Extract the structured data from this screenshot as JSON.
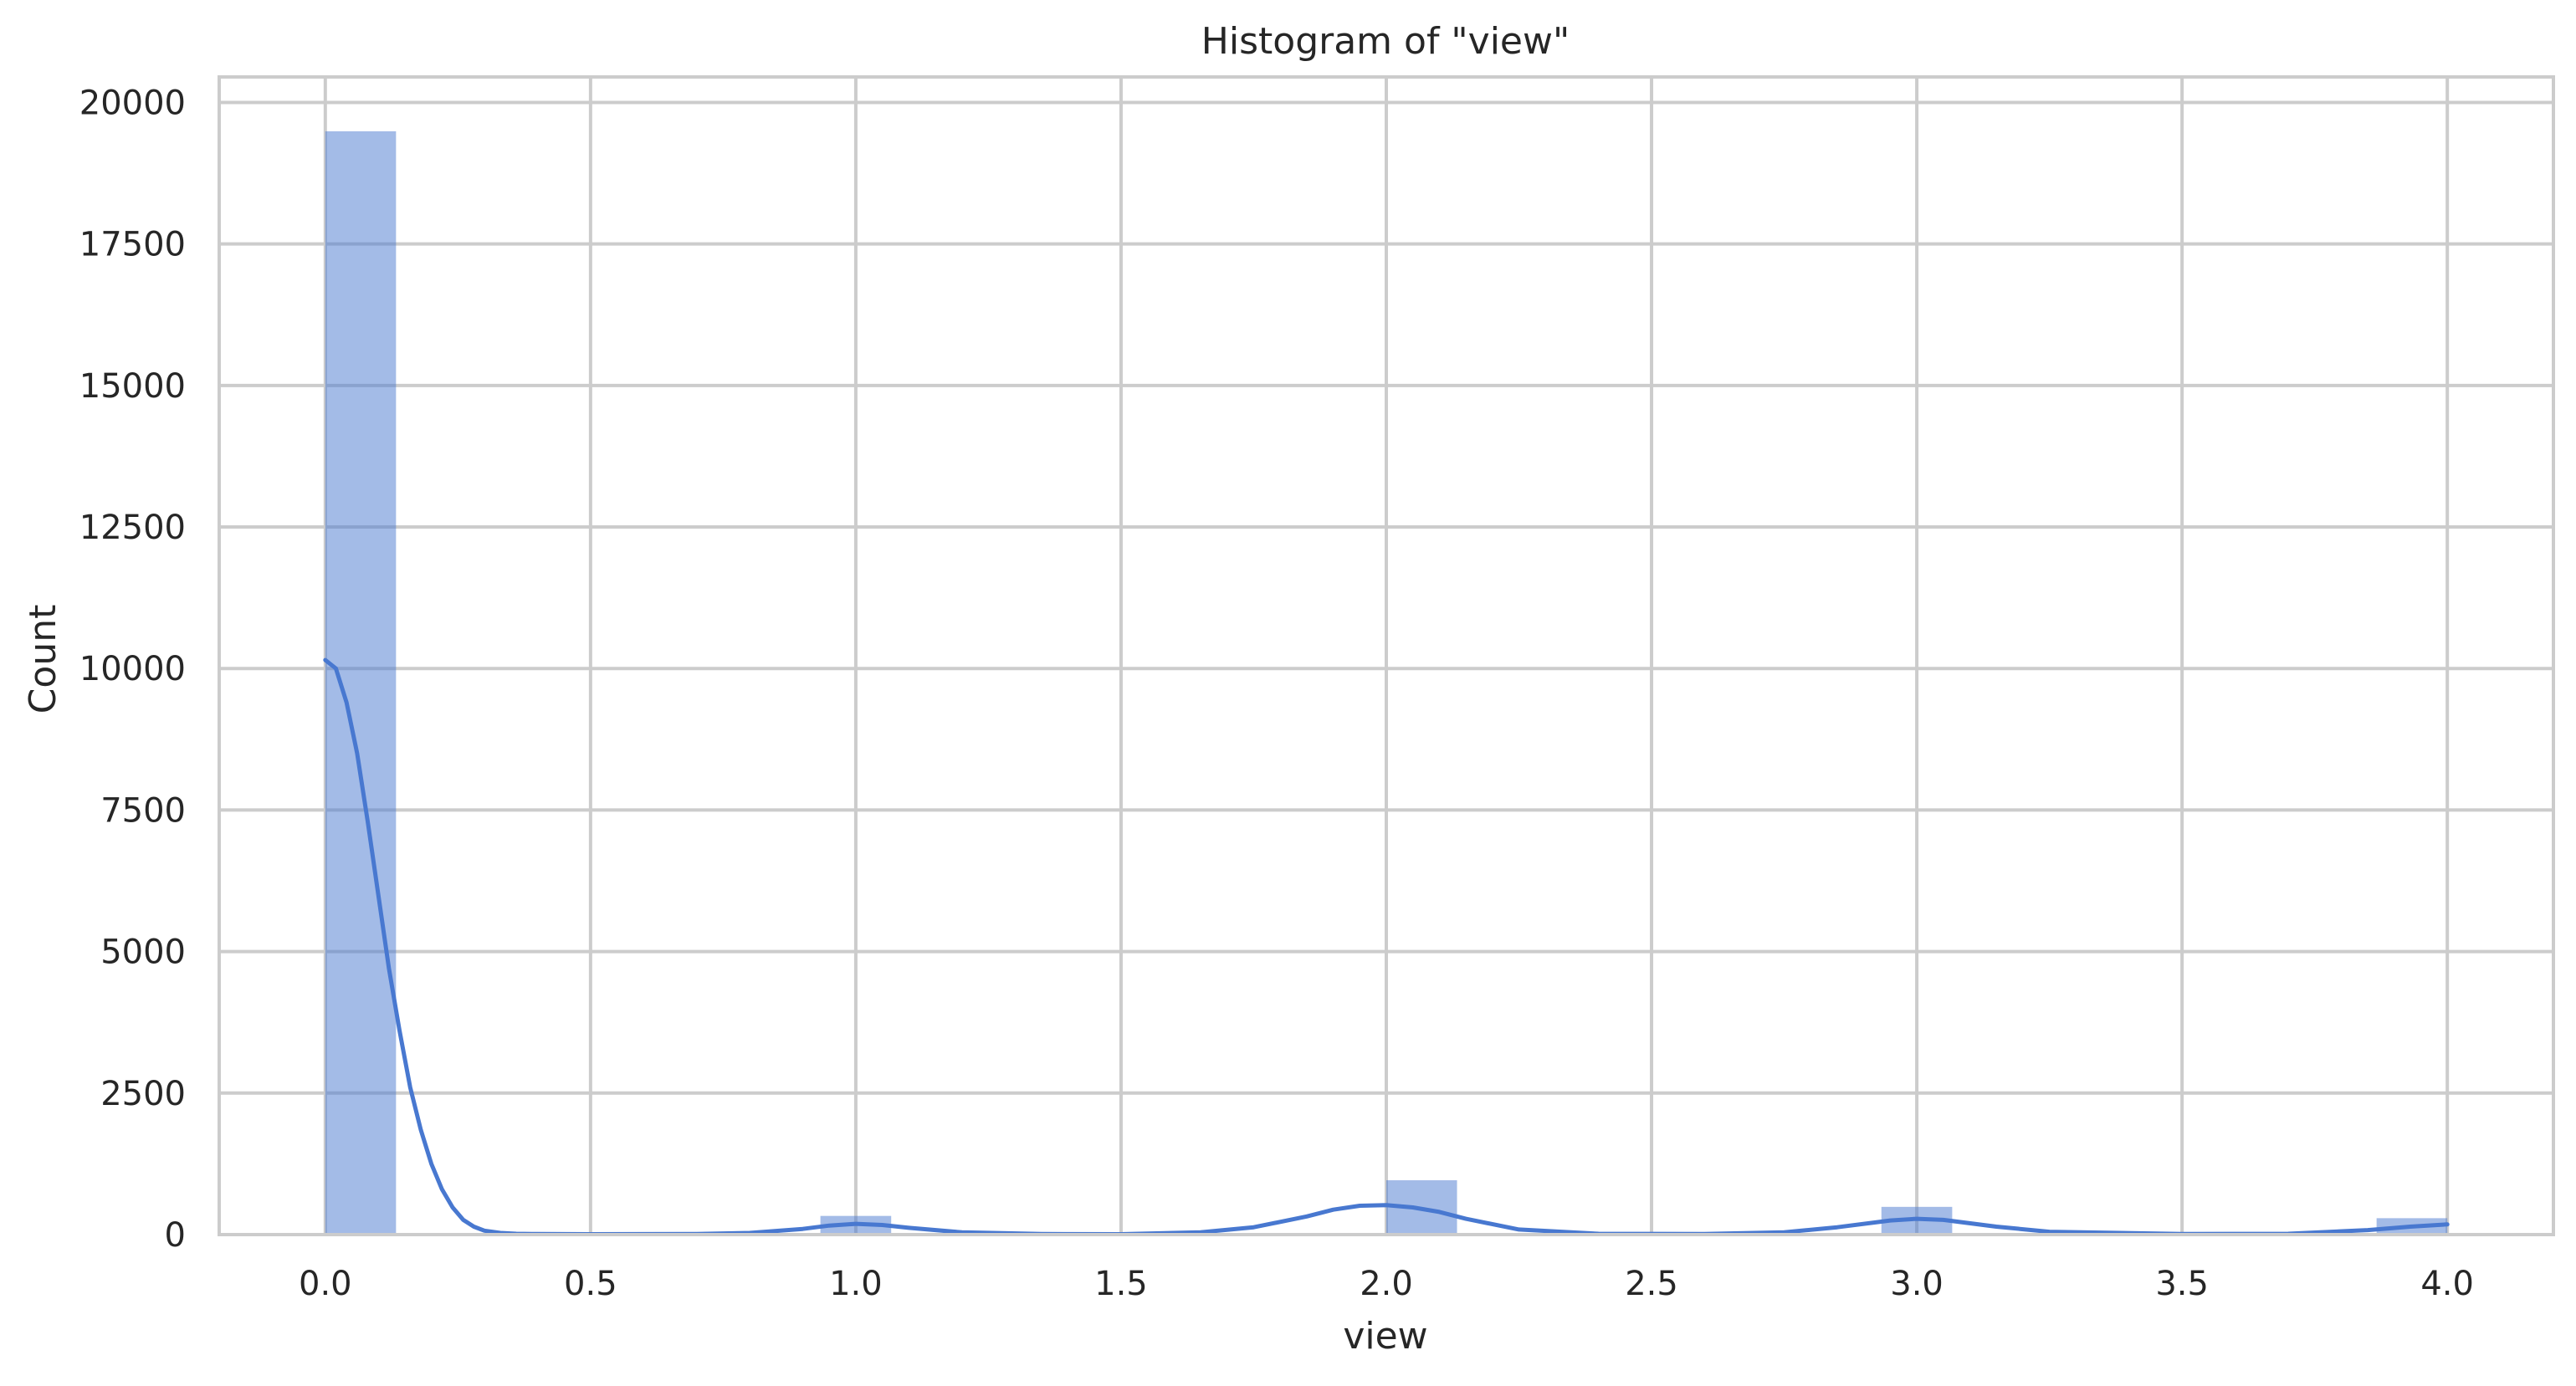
{
  "chart_data": {
    "type": "bar",
    "subtype": "histogram-with-kde",
    "title": "Histogram of \"view\"",
    "xlabel": "view",
    "ylabel": "Count",
    "xlim": [
      -0.2,
      4.2
    ],
    "ylim": [
      0,
      20450
    ],
    "grid": true,
    "legend": "none",
    "x_ticks": [
      0.0,
      0.5,
      1.0,
      1.5,
      2.0,
      2.5,
      3.0,
      3.5,
      4.0
    ],
    "x_tick_labels": [
      "0.0",
      "0.5",
      "1.0",
      "1.5",
      "2.0",
      "2.5",
      "3.0",
      "3.5",
      "4.0"
    ],
    "y_ticks": [
      0,
      2500,
      5000,
      7500,
      10000,
      12500,
      15000,
      17500,
      20000
    ],
    "y_tick_labels": [
      "0",
      "2500",
      "5000",
      "7500",
      "10000",
      "12500",
      "15000",
      "17500",
      "20000"
    ],
    "bin_width": 0.1333,
    "bins": [
      {
        "x0": 0.0,
        "x1": 0.1333,
        "count": 19490
      },
      {
        "x0": 0.9333,
        "x1": 1.0667,
        "count": 330
      },
      {
        "x0": 2.0,
        "x1": 2.1333,
        "count": 960
      },
      {
        "x0": 2.9333,
        "x1": 3.0667,
        "count": 490
      },
      {
        "x0": 3.8667,
        "x1": 4.0,
        "count": 290
      }
    ],
    "kde": {
      "x": [
        0.0,
        0.02,
        0.04,
        0.06,
        0.08,
        0.1,
        0.12,
        0.14,
        0.16,
        0.18,
        0.2,
        0.22,
        0.24,
        0.26,
        0.28,
        0.3,
        0.33,
        0.36,
        0.4,
        0.5,
        0.7,
        0.8,
        0.9,
        0.95,
        1.0,
        1.05,
        1.1,
        1.2,
        1.35,
        1.5,
        1.65,
        1.75,
        1.85,
        1.9,
        1.95,
        2.0,
        2.05,
        2.1,
        2.15,
        2.25,
        2.4,
        2.6,
        2.75,
        2.85,
        2.95,
        3.0,
        3.05,
        3.15,
        3.25,
        3.5,
        3.7,
        3.85,
        3.93,
        4.0
      ],
      "y": [
        10150,
        10000,
        9400,
        8500,
        7300,
        6000,
        4700,
        3600,
        2600,
        1850,
        1250,
        800,
        480,
        260,
        140,
        70,
        30,
        15,
        10,
        8,
        10,
        30,
        100,
        160,
        190,
        170,
        120,
        40,
        10,
        8,
        40,
        130,
        320,
        440,
        510,
        520,
        480,
        400,
        280,
        90,
        15,
        10,
        40,
        130,
        250,
        280,
        260,
        140,
        50,
        10,
        15,
        80,
        140,
        180
      ]
    },
    "colors": {
      "bar": "#4878d0",
      "kde": "#4878d0",
      "grid": "#cccccc",
      "background": "#ffffff",
      "text": "#262626"
    }
  }
}
